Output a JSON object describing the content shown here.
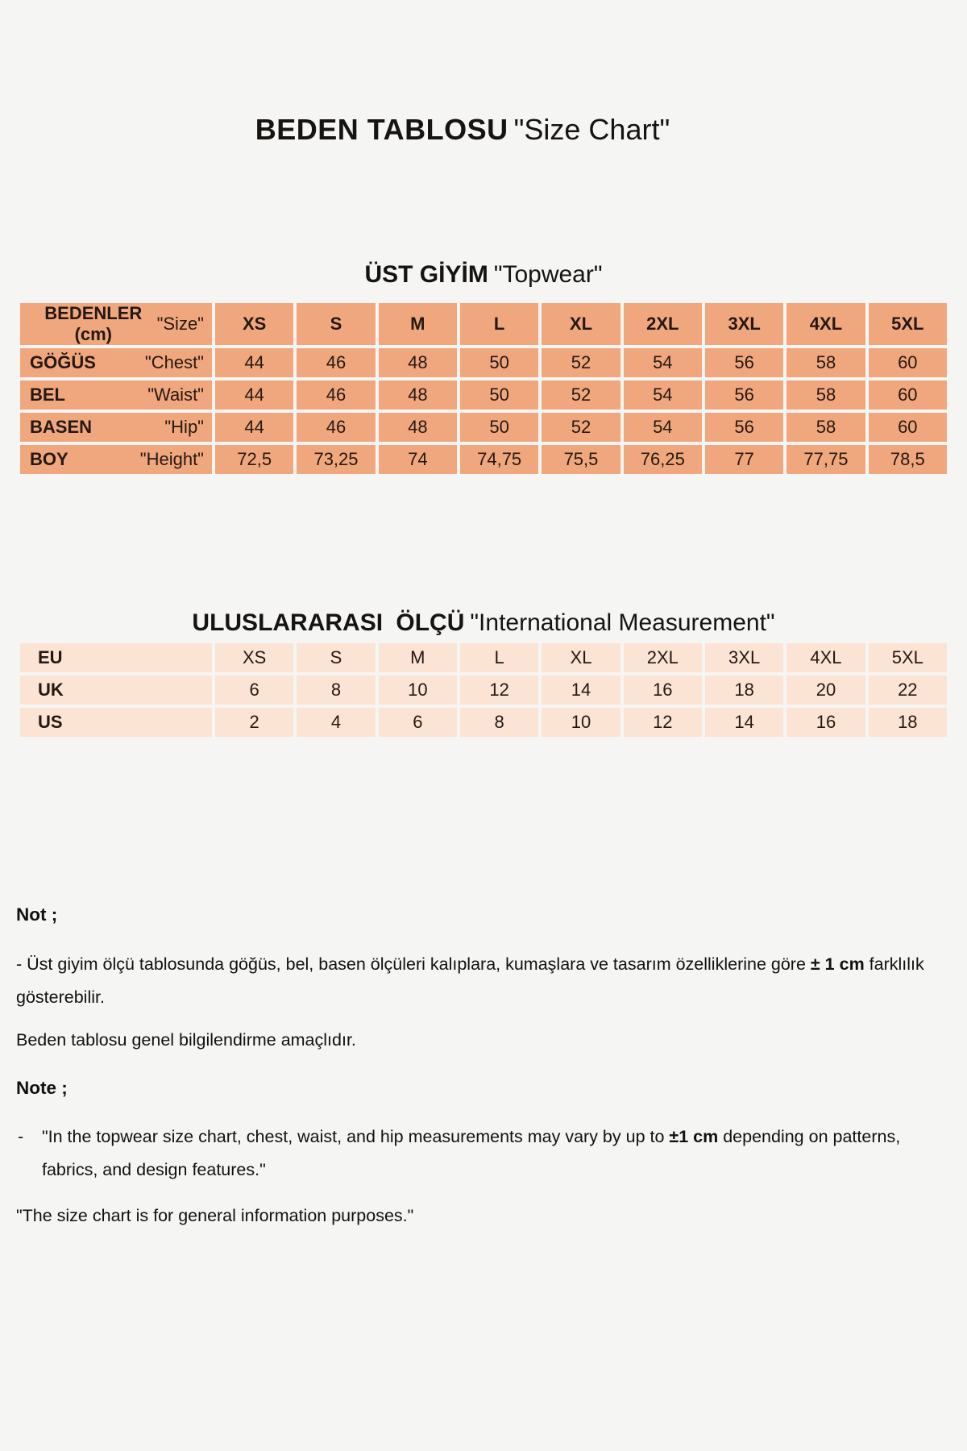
{
  "page": {
    "title_tr": "BEDEN TABLOSU",
    "title_en": "\"Size Chart\""
  },
  "topwear": {
    "heading_tr": "ÜST GİYİM",
    "heading_en": "\"Topwear\"",
    "table": {
      "rows": [
        {
          "header": true,
          "label": "BEDENLER (cm)",
          "sublabel": "\"Size\"",
          "values": [
            "XS",
            "S",
            "M",
            "L",
            "XL",
            "2XL",
            "3XL",
            "4XL",
            "5XL"
          ]
        },
        {
          "header": false,
          "label": "GÖĞÜS",
          "sublabel": "\"Chest\"",
          "values": [
            "44",
            "46",
            "48",
            "50",
            "52",
            "54",
            "56",
            "58",
            "60"
          ]
        },
        {
          "header": false,
          "label": "BEL",
          "sublabel": "\"Waist\"",
          "values": [
            "44",
            "46",
            "48",
            "50",
            "52",
            "54",
            "56",
            "58",
            "60"
          ]
        },
        {
          "header": false,
          "label": "BASEN",
          "sublabel": "\"Hip\"",
          "values": [
            "44",
            "46",
            "48",
            "50",
            "52",
            "54",
            "56",
            "58",
            "60"
          ]
        },
        {
          "header": false,
          "label": "BOY",
          "sublabel": "\"Height\"",
          "values": [
            "72,5",
            "73,25",
            "74",
            "74,75",
            "75,5",
            "76,25",
            "77",
            "77,75",
            "78,5"
          ]
        }
      ]
    }
  },
  "international": {
    "heading_tr": "ULUSLARARASI ÖLÇÜ",
    "heading_en": "\"International Measurement\"",
    "table": {
      "rows": [
        {
          "header": false,
          "label": "EU",
          "values": [
            "XS",
            "S",
            "M",
            "L",
            "XL",
            "2XL",
            "3XL",
            "4XL",
            "5XL"
          ]
        },
        {
          "header": false,
          "label": "UK",
          "values": [
            "6",
            "8",
            "10",
            "12",
            "14",
            "16",
            "18",
            "20",
            "22"
          ]
        },
        {
          "header": false,
          "label": "US",
          "values": [
            "2",
            "4",
            "6",
            "8",
            "10",
            "12",
            "14",
            "16",
            "18"
          ]
        }
      ]
    }
  },
  "notes": {
    "tr_heading": "Not ;",
    "tr_bullet": [
      {
        "text": "- Üst giyim ölçü tablosunda göğüs, bel, basen ölçüleri kalıplara, kumaşlara ve tasarım özelliklerine göre ",
        "bold": false
      },
      {
        "text": "± 1 cm",
        "bold": true
      },
      {
        "text": " farklılık gösterebilir.",
        "bold": false
      }
    ],
    "tr_general": "Beden tablosu genel bilgilendirme amaçlıdır.",
    "en_heading": "Note ;",
    "en_dash": "-",
    "en_bullet": [
      {
        "text": "\"In the topwear size chart, chest, waist, and hip measurements may vary by up to ",
        "bold": false
      },
      {
        "text": "±1 cm",
        "bold": true
      },
      {
        "text": " depending on patterns, fabrics, and design features.\"",
        "bold": false
      }
    ],
    "en_general": "\"The size chart is for general information purposes.\""
  },
  "colors": {
    "page_bg": "#f5f5f3",
    "topwear_cell": "#f1a77d",
    "international_cell": "#fbe4d4",
    "grid_line": "#f5f5f3"
  }
}
